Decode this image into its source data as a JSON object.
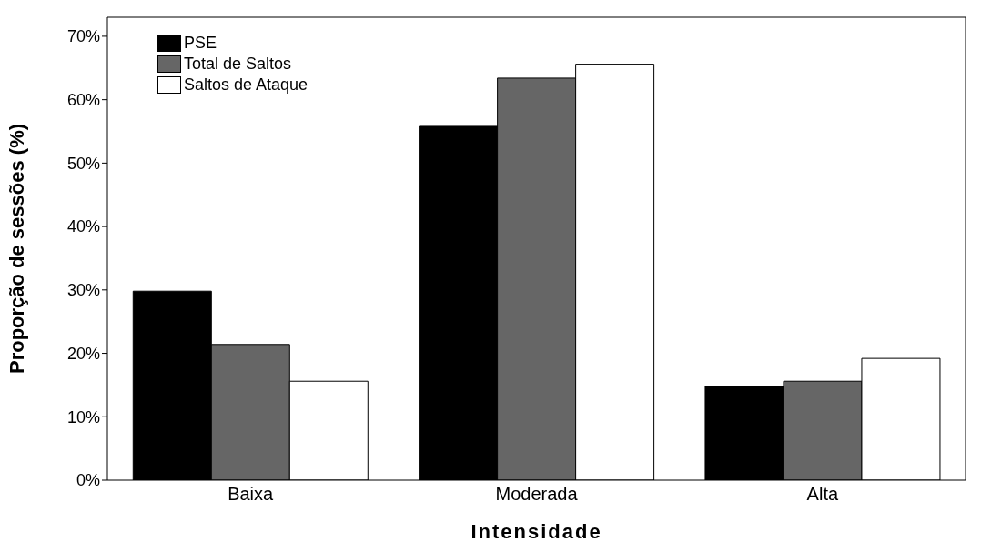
{
  "chart_data": {
    "type": "bar",
    "xlabel": "Intensidade",
    "ylabel": "Proporção de sessões (%)",
    "categories": [
      "Baixa",
      "Moderada",
      "Alta"
    ],
    "series": [
      {
        "name": "PSE",
        "color": "#000000",
        "values": [
          29.8,
          55.8,
          14.8
        ]
      },
      {
        "name": "Total de Saltos",
        "color": "#666666",
        "values": [
          21.4,
          63.4,
          15.6
        ]
      },
      {
        "name": "Saltos de Ataque",
        "color": "#ffffff",
        "values": [
          15.6,
          65.6,
          19.2
        ]
      }
    ],
    "ylim": [
      0,
      73
    ],
    "yticks": [
      {
        "value": 0,
        "label": "0%"
      },
      {
        "value": 10,
        "label": "10%"
      },
      {
        "value": 20,
        "label": "20%"
      },
      {
        "value": 30,
        "label": "30%"
      },
      {
        "value": 40,
        "label": "40%"
      },
      {
        "value": 50,
        "label": "50%"
      },
      {
        "value": 60,
        "label": "60%"
      },
      {
        "value": 70,
        "label": "70%"
      }
    ],
    "grid": false,
    "legend": "top left"
  }
}
